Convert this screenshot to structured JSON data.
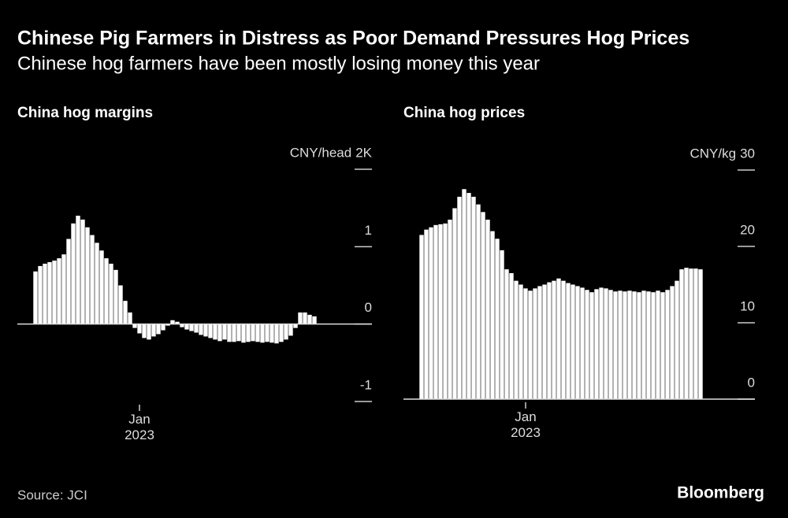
{
  "title": "Chinese Pig Farmers in Distress as Poor Demand Pressures Hog Prices",
  "subtitle": "Chinese hog farmers have been mostly losing money this year",
  "source": "Source: JCI",
  "brand": "Bloomberg",
  "chart_data": [
    {
      "type": "bar",
      "title": "China hog margins",
      "unit": "CNY/head",
      "color": "#ffffff",
      "categories": [
        null,
        null,
        null,
        null,
        null,
        null,
        null,
        null,
        null,
        null,
        null,
        null,
        null,
        null,
        null,
        null,
        null,
        null,
        null,
        null,
        null,
        null,
        "Jan 2023",
        null,
        null,
        null,
        null,
        null,
        null,
        null,
        null,
        null,
        null,
        null,
        null,
        null,
        null,
        null,
        null,
        null,
        null,
        null,
        null,
        null,
        null,
        null,
        null,
        null,
        null,
        null,
        null,
        null,
        null,
        null,
        null,
        null,
        null,
        null,
        null,
        null
      ],
      "values": [
        0.68,
        0.75,
        0.78,
        0.8,
        0.82,
        0.85,
        0.9,
        1.1,
        1.3,
        1.4,
        1.35,
        1.25,
        1.15,
        1.05,
        0.95,
        0.85,
        0.78,
        0.7,
        0.5,
        0.3,
        0.15,
        -0.05,
        -0.12,
        -0.18,
        -0.2,
        -0.16,
        -0.13,
        -0.08,
        -0.02,
        0.05,
        0.03,
        -0.04,
        -0.07,
        -0.09,
        -0.11,
        -0.14,
        -0.16,
        -0.18,
        -0.2,
        -0.22,
        -0.2,
        -0.23,
        -0.23,
        -0.22,
        -0.24,
        -0.23,
        -0.22,
        -0.23,
        -0.24,
        -0.23,
        -0.24,
        -0.25,
        -0.23,
        -0.2,
        -0.15,
        -0.05,
        0.15,
        0.15,
        0.12,
        0.1
      ],
      "ylim": [
        -1,
        2
      ],
      "yticks": [
        -1,
        0,
        1,
        {
          "value": 2,
          "label": "2K"
        }
      ]
    },
    {
      "type": "bar",
      "title": "China hog prices",
      "unit": "CNY/kg",
      "color": "#ffffff",
      "categories": [
        null,
        null,
        null,
        null,
        null,
        null,
        null,
        null,
        null,
        null,
        null,
        null,
        null,
        null,
        null,
        null,
        null,
        null,
        null,
        null,
        null,
        null,
        "Jan 2023",
        null,
        null,
        null,
        null,
        null,
        null,
        null,
        null,
        null,
        null,
        null,
        null,
        null,
        null,
        null,
        null,
        null,
        null,
        null,
        null,
        null,
        null,
        null,
        null,
        null,
        null,
        null,
        null,
        null,
        null,
        null,
        null,
        null,
        null,
        null,
        null,
        null
      ],
      "values": [
        21.5,
        22.2,
        22.5,
        22.8,
        22.9,
        23,
        23.5,
        25,
        26.5,
        27.5,
        27,
        26.5,
        25.5,
        24.5,
        23.5,
        22,
        21,
        19.5,
        17,
        16.5,
        15.5,
        15,
        14.5,
        14.2,
        14.5,
        14.8,
        15,
        15.3,
        15.5,
        15.8,
        15.5,
        15.2,
        15,
        14.8,
        14.6,
        14.3,
        14,
        14.4,
        14.6,
        14.5,
        14.3,
        14.1,
        14.2,
        14.1,
        14.2,
        14.1,
        14,
        14.2,
        14.1,
        14,
        14.2,
        14,
        14.3,
        14.8,
        15.5,
        17,
        17.2,
        17.1,
        17.1,
        17
      ],
      "ylim": [
        0,
        30
      ],
      "yticks": [
        0,
        10,
        20,
        30
      ]
    }
  ]
}
